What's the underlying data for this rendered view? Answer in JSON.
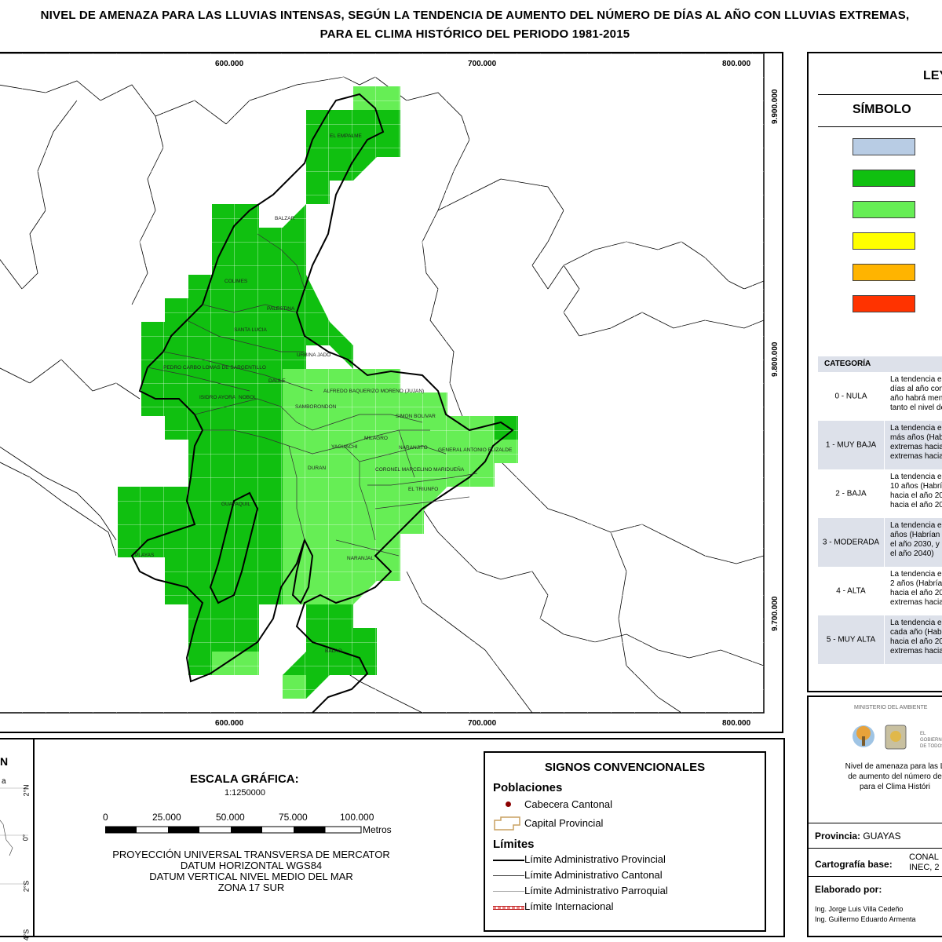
{
  "title": {
    "line1": "NIVEL DE AMENAZA PARA LAS LLUVIAS INTENSAS, SEGÚN LA TENDENCIA DE AUMENTO DEL NÚMERO DE DÍAS AL AÑO CON LLUVIAS EXTREMAS,",
    "line2": "PARA EL CLIMA HISTÓRICO DEL PERIODO 1981-2015"
  },
  "map": {
    "x_ticks": [
      "600.000",
      "700.000",
      "800.000"
    ],
    "y_ticks": [
      "9.900.000",
      "9.800.000",
      "9.700.000"
    ],
    "colors": {
      "dark_green": "#10c010",
      "light_green": "#66ee55",
      "grid_line": "#ffffff",
      "boundary": "#000000"
    },
    "towns": [
      "EL EMPALME",
      "BALZAR",
      "COLIMES",
      "PALESTINA",
      "SANTA LUCIA",
      "URBINA JADO",
      "PEDRO CARBO",
      "LOMAS DE SARGENTILLO",
      "DAULE",
      "ISIDRO AYORA",
      "NOBOL",
      "ALFREDO BAQUERIZO MORENO (JUJAN)",
      "SAMBORONDON",
      "SIMON BOLIVAR",
      "MILAGRO",
      "YAGUACHI",
      "NARANJITO",
      "GENERAL ANTONIO ELIZALDE",
      "DURAN",
      "CORONEL MARCELINO MARIDUEÑA",
      "EL TRIUNFO",
      "GUAYAQUIL",
      "PLAYAS",
      "NARANJAL",
      "BALAO"
    ]
  },
  "legend": {
    "title": "LEYENDA",
    "symbol_header": "SÍMBOLO",
    "swatch_colors": [
      "#b8cce4",
      "#10c010",
      "#66ee55",
      "#ffff00",
      "#ffb400",
      "#ff3300"
    ],
    "category_header": "CATEGORÍA",
    "categories": [
      {
        "name": "0 - NULA",
        "desc": [
          "La tendencia es",
          "días al año con",
          "año habrá men",
          "tanto el nivel de"
        ]
      },
      {
        "name": "1 - MUY BAJA",
        "desc": [
          "La tendencia es",
          "más años (Habrá",
          "extremas hacia",
          "extremas hacia"
        ]
      },
      {
        "name": "2 - BAJA",
        "desc": [
          "La tendencia es",
          "10 años (Habría",
          "hacia el año 20",
          "hacia el año 20"
        ]
      },
      {
        "name": "3 - MODERADA",
        "desc": [
          "La tendencia es",
          "años (Habrían",
          "el año 2030, y",
          "el año 2040)"
        ]
      },
      {
        "name": "4 - ALTA",
        "desc": [
          "La tendencia e",
          "2 años (Habría",
          "hacia el año 20",
          "extremas hacia"
        ]
      },
      {
        "name": "5 - MUY ALTA",
        "desc": [
          "La tendencia es",
          "cada año (Habr",
          "hacia el año 20",
          "extremas hacia"
        ]
      }
    ]
  },
  "info": {
    "ministry": "MINISTERIO DEL AMBIENTE",
    "description": [
      "Nivel de amenaza para las L",
      "de aumento del número de",
      "para el Clima Históri"
    ],
    "province_label": "Provincia:",
    "province_value": "GUAYAS",
    "base_label": "Cartografía base:",
    "base_value": [
      "CONAL",
      "INEC, 2"
    ],
    "made_by_label": "Elaborado por:",
    "authors": [
      "Ing. Jorge Luis Villa Cedeño",
      "Ing. Guillermo Eduardo Armenta"
    ]
  },
  "locator": {
    "label": "N",
    "lat_labels": [
      "2°N",
      "0°",
      "2°S",
      "4°S"
    ],
    "side_text": "a"
  },
  "scale": {
    "title": "ESCALA GRÁFICA:",
    "ratio": "1:1250000",
    "ticks": [
      "0",
      "25.000",
      "50.000",
      "75.000",
      "100.000"
    ],
    "unit": "Metros",
    "projection": [
      "PROYECCIÓN UNIVERSAL TRANSVERSA DE MERCATOR",
      "DATUM HORIZONTAL WGS84",
      "DATUM VERTICAL NIVEL MEDIO DEL MAR",
      "ZONA 17 SUR"
    ]
  },
  "signos": {
    "title": "SIGNOS CONVENCIONALES",
    "poblaciones": "Poblaciones",
    "cabecera": "Cabecera Cantonal",
    "capital": "Capital Provincial",
    "limites": "Límites",
    "limit_items": [
      "Límite Administrativo Provincial",
      "Límite Administrativo Cantonal",
      "Límite Administrativo Parroquial",
      "Límite Internacional"
    ]
  }
}
